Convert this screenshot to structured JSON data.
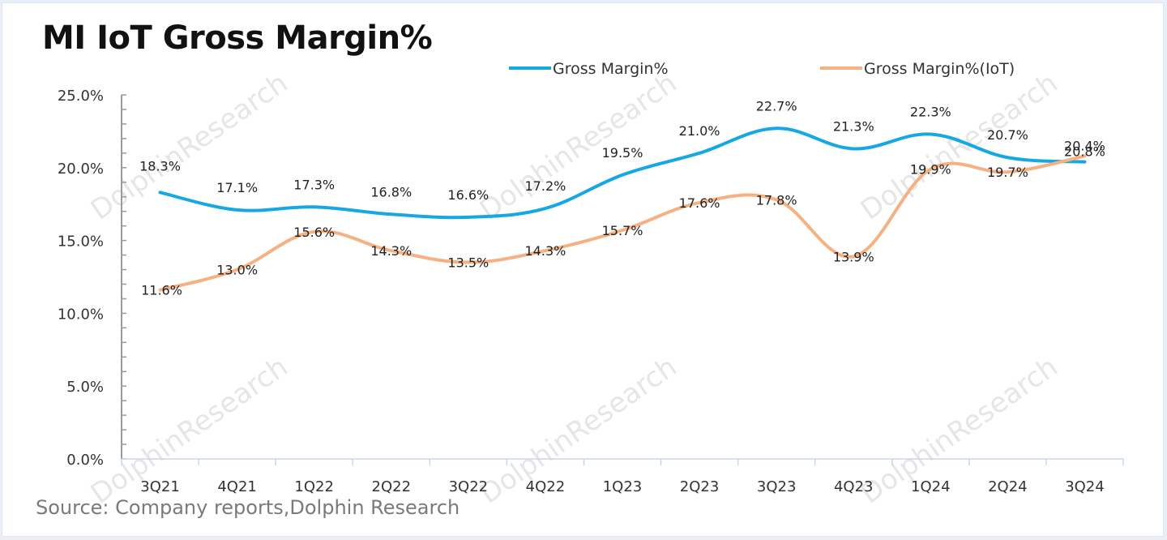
{
  "chart_data": {
    "type": "line",
    "title": "MI IoT Gross Margin%",
    "source": "Source: Company reports,Dolphin Research",
    "watermark": "DolphinResearch",
    "categories": [
      "3Q21",
      "4Q21",
      "1Q22",
      "2Q22",
      "3Q22",
      "4Q22",
      "1Q23",
      "2Q23",
      "3Q23",
      "4Q23",
      "1Q24",
      "2Q24",
      "3Q24"
    ],
    "series": [
      {
        "name": "Gross Margin%",
        "color": "#17a8e3",
        "values": [
          18.3,
          17.1,
          17.3,
          16.8,
          16.6,
          17.2,
          19.5,
          21.0,
          22.7,
          21.3,
          22.3,
          20.7,
          20.4
        ]
      },
      {
        "name": "Gross Margin%(IoT)",
        "color": "#f6b183",
        "values": [
          11.6,
          13.0,
          15.6,
          14.3,
          13.5,
          14.3,
          15.7,
          17.6,
          17.8,
          13.9,
          19.9,
          19.7,
          20.8
        ]
      }
    ],
    "ylim": [
      0,
      25
    ],
    "yticks": [
      0,
      5,
      10,
      15,
      20,
      25
    ],
    "ytick_labels": [
      "0.0%",
      "5.0%",
      "10.0%",
      "15.0%",
      "20.0%",
      "25.0%"
    ],
    "xlabel": "",
    "ylabel": "",
    "legend": "top-right",
    "grid": false,
    "smooth": true
  }
}
